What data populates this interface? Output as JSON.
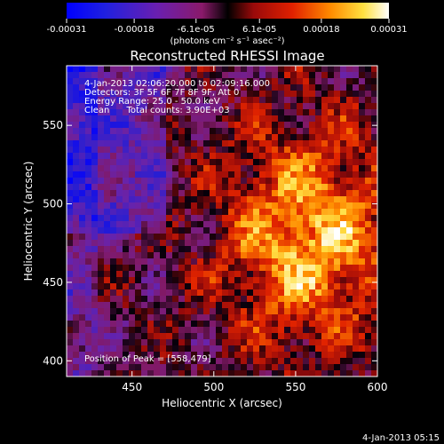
{
  "chart_data": {
    "type": "heatmap",
    "title": "Reconstructed RHESSI Image",
    "xlabel": "Heliocentric X (arcsec)",
    "ylabel": "Heliocentric Y (arcsec)",
    "xlim": [
      410,
      600
    ],
    "ylim": [
      390,
      588
    ],
    "x_ticks": [
      450,
      500,
      550,
      600
    ],
    "y_ticks": [
      400,
      450,
      500,
      550
    ],
    "colorbar": {
      "range": [
        -0.00031,
        0.00031
      ],
      "tick_values": [
        -0.00031,
        -0.00018,
        -6.1e-05,
        6.1e-05,
        0.00018,
        0.00031
      ],
      "tick_labels": [
        "-0.00031",
        "-0.00018",
        "-6.1e-05",
        "6.1e-05",
        "0.00018",
        "0.00031"
      ],
      "unit_label": "(photons cm⁻² s⁻¹ asec⁻²)"
    },
    "annotations": [
      "4-Jan-2013 02:06:20.000 to 02:09:16.000",
      "Detectors: 3F 5F 6F 7F 8F 9F, Att 0",
      "Energy Range: 25.0 - 50.0 keV",
      "Clean      Total counts: 3.90E+03"
    ],
    "peak_text": "Position of Peak = [558,479]",
    "peak_position": [
      558,
      479
    ],
    "grid": false
  },
  "footer": {
    "timestamp": "4-Jan-2013 05:15"
  }
}
